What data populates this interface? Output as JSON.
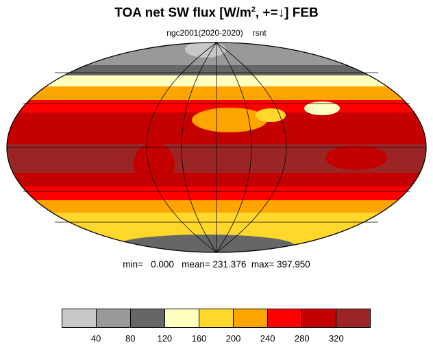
{
  "title_parts": {
    "prefix": "TOA net SW flux [W/m",
    "sup": "2",
    "suffix": ", +=↓]  FEB"
  },
  "subtitle": {
    "left": "ngc2001(2020-2020)",
    "right": "rsnt"
  },
  "stats": {
    "text": "min=   0.000   mean= 231.376  max= 397.950"
  },
  "map": {
    "projection": "mollweide",
    "colors": {
      "ocean_tropics": "#9b2525",
      "subtropics": "#c40000",
      "midlat": "#ff0000",
      "storm_track": "#ffa500",
      "high_lat": "#ffd82b",
      "fringe": "#ffffc0",
      "cloud_dark": "#666666",
      "cloud_mid": "#999999",
      "cloud_light": "#c8c8c8",
      "antarctica": "#666666"
    }
  },
  "colorbar": {
    "colors": [
      "#c8c8c8",
      "#999999",
      "#666666",
      "#ffffc0",
      "#ffd82b",
      "#ffa500",
      "#ff0000",
      "#c40000",
      "#9b2525"
    ],
    "tick_labels": [
      "40",
      "80",
      "120",
      "160",
      "200",
      "240",
      "280",
      "320"
    ]
  }
}
